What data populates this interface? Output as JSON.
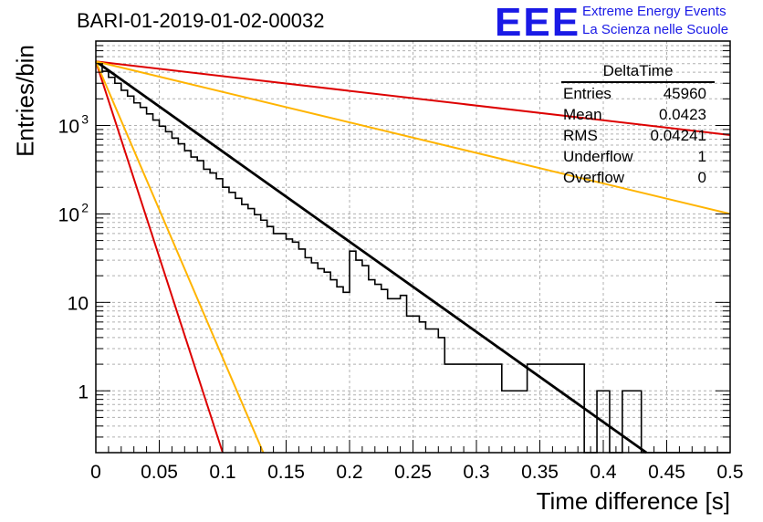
{
  "header": {
    "title": "BARI-01-2019-01-02-00032",
    "logo_text": "EEE",
    "logo_line1": "Extreme Energy Events",
    "logo_line2": "La Scienza nelle Scuole",
    "logo_color": "#1a1ae6"
  },
  "stats": {
    "title": "DeltaTime",
    "rows": [
      {
        "label": "Entries",
        "value": "45960"
      },
      {
        "label": "Mean",
        "value": "0.0423"
      },
      {
        "label": "RMS",
        "value": "0.04241"
      },
      {
        "label": "Underflow",
        "value": "1"
      },
      {
        "label": "Overflow",
        "value": "0"
      }
    ]
  },
  "chart_data": {
    "type": "line",
    "xlabel": "Time difference [s]",
    "ylabel": "Entries/bin",
    "yscale": "log",
    "xlim": [
      0,
      0.5
    ],
    "ylim": [
      0.2,
      9000
    ],
    "grid": true,
    "x_ticks": [
      "0",
      "0.05",
      "0.1",
      "0.15",
      "0.2",
      "0.25",
      "0.3",
      "0.35",
      "0.4",
      "0.45",
      "0.5"
    ],
    "y_ticks": [
      {
        "value": 1000,
        "label": "10",
        "exp": "3"
      },
      {
        "value": 100,
        "label": "10",
        "exp": "2"
      },
      {
        "value": 10,
        "label": "10",
        "exp": ""
      },
      {
        "value": 1,
        "label": "1",
        "exp": ""
      }
    ],
    "histogram": {
      "color": "#000000",
      "bin_width": 0.005,
      "values": [
        5000,
        4100,
        3500,
        3000,
        2500,
        2150,
        1800,
        1600,
        1350,
        1150,
        980,
        850,
        720,
        620,
        520,
        440,
        400,
        320,
        290,
        250,
        200,
        175,
        150,
        128,
        115,
        98,
        85,
        72,
        60,
        60,
        52,
        48,
        40,
        32,
        28,
        24,
        22,
        18,
        15,
        13,
        38,
        30,
        26,
        18,
        16,
        14,
        11,
        11,
        12,
        7,
        7,
        6,
        5,
        5,
        4,
        2,
        2,
        2,
        2,
        2,
        2,
        2,
        2,
        2,
        1,
        1,
        1,
        1,
        2,
        2,
        2,
        2,
        2,
        2,
        2,
        2,
        2,
        0,
        0,
        1,
        1,
        0,
        0,
        1,
        1,
        1,
        0,
        0,
        0,
        0,
        0,
        0,
        0,
        0,
        0,
        0,
        0,
        0,
        0,
        0
      ]
    },
    "series": [
      {
        "color": "#000000",
        "points": [
          [
            0,
            5300
          ],
          [
            0.434,
            0.2
          ]
        ]
      },
      {
        "color": "#dd0000",
        "points": [
          [
            0,
            5300
          ],
          [
            0.1,
            0.2
          ]
        ]
      },
      {
        "color": "#ffb400",
        "points": [
          [
            0,
            5300
          ],
          [
            0.132,
            0.2
          ]
        ]
      },
      {
        "color": "#dd0000",
        "points": [
          [
            0,
            5300
          ],
          [
            0.5,
            780
          ]
        ]
      },
      {
        "color": "#ffb400",
        "points": [
          [
            0,
            5300
          ],
          [
            0.5,
            100
          ]
        ]
      }
    ]
  }
}
